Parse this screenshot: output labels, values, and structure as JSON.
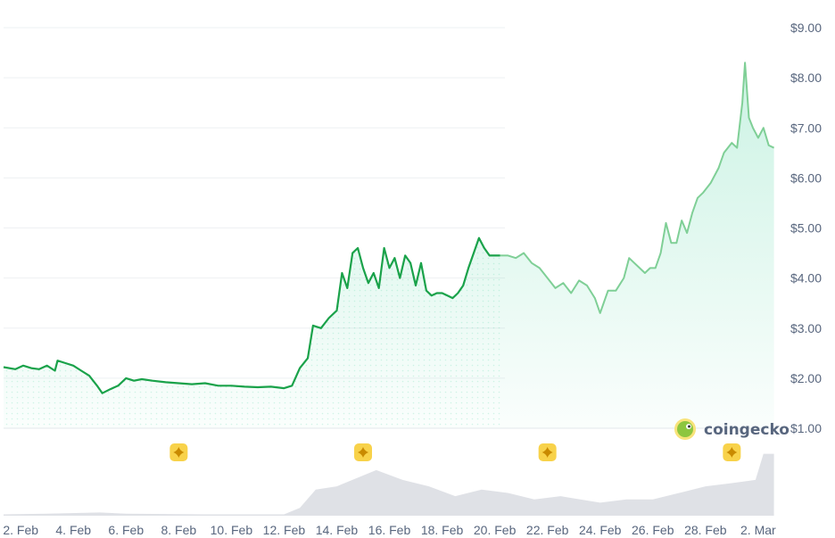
{
  "chart_data": {
    "type": "area",
    "y_ticks": [
      "$9.00",
      "$8.00",
      "$7.00",
      "$6.00",
      "$5.00",
      "$4.00",
      "$3.00",
      "$2.00",
      "$1.00"
    ],
    "y_tick_values": [
      9,
      8,
      7,
      6,
      5,
      4,
      3,
      2,
      1
    ],
    "ylim": [
      1,
      9
    ],
    "x_tick_labels": [
      "2. Feb",
      "4. Feb",
      "6. Feb",
      "8. Feb",
      "10. Feb",
      "12. Feb",
      "14. Feb",
      "16. Feb",
      "18. Feb",
      "20. Feb",
      "22. Feb",
      "24. Feb",
      "26. Feb",
      "28. Feb",
      "2. Mar"
    ],
    "x_tick_days": [
      1,
      3,
      5,
      7,
      9,
      11,
      13,
      15,
      17,
      19,
      21,
      23,
      25,
      27,
      29
    ],
    "xlim_days": [
      0.35,
      29.75
    ],
    "split_day": 19.2,
    "grid": true,
    "series": [
      {
        "values": [
          [
            0.35,
            2.22
          ],
          [
            0.8,
            2.18
          ],
          [
            1.1,
            2.25
          ],
          [
            1.4,
            2.2
          ],
          [
            1.7,
            2.18
          ],
          [
            2.0,
            2.25
          ],
          [
            2.3,
            2.15
          ],
          [
            2.4,
            2.35
          ],
          [
            2.7,
            2.3
          ],
          [
            3.0,
            2.25
          ],
          [
            3.3,
            2.15
          ],
          [
            3.6,
            2.05
          ],
          [
            3.9,
            1.85
          ],
          [
            4.1,
            1.7
          ],
          [
            4.4,
            1.78
          ],
          [
            4.7,
            1.85
          ],
          [
            5.0,
            2.0
          ],
          [
            5.3,
            1.95
          ],
          [
            5.6,
            1.98
          ],
          [
            6.0,
            1.95
          ],
          [
            6.5,
            1.92
          ],
          [
            7.0,
            1.9
          ],
          [
            7.5,
            1.88
          ],
          [
            8.0,
            1.9
          ],
          [
            8.5,
            1.85
          ],
          [
            9.0,
            1.85
          ],
          [
            9.5,
            1.83
          ],
          [
            10.0,
            1.82
          ],
          [
            10.5,
            1.83
          ],
          [
            11.0,
            1.8
          ],
          [
            11.3,
            1.85
          ],
          [
            11.6,
            2.2
          ],
          [
            11.9,
            2.4
          ],
          [
            12.1,
            3.05
          ],
          [
            12.4,
            3.0
          ],
          [
            12.7,
            3.2
          ],
          [
            13.0,
            3.35
          ],
          [
            13.2,
            4.1
          ],
          [
            13.4,
            3.8
          ],
          [
            13.6,
            4.5
          ],
          [
            13.8,
            4.6
          ],
          [
            14.0,
            4.2
          ],
          [
            14.2,
            3.9
          ],
          [
            14.4,
            4.1
          ],
          [
            14.6,
            3.8
          ],
          [
            14.8,
            4.6
          ],
          [
            15.0,
            4.2
          ],
          [
            15.2,
            4.4
          ],
          [
            15.4,
            4.0
          ],
          [
            15.6,
            4.45
          ],
          [
            15.8,
            4.3
          ],
          [
            16.0,
            3.85
          ],
          [
            16.2,
            4.3
          ],
          [
            16.4,
            3.75
          ],
          [
            16.6,
            3.65
          ],
          [
            16.8,
            3.7
          ],
          [
            17.0,
            3.7
          ],
          [
            17.2,
            3.65
          ],
          [
            17.4,
            3.6
          ],
          [
            17.6,
            3.7
          ],
          [
            17.8,
            3.85
          ],
          [
            18.0,
            4.2
          ],
          [
            18.2,
            4.5
          ],
          [
            18.4,
            4.8
          ],
          [
            18.6,
            4.6
          ],
          [
            18.8,
            4.45
          ],
          [
            19.0,
            4.45
          ],
          [
            19.2,
            4.45
          ],
          [
            19.5,
            4.45
          ],
          [
            19.8,
            4.4
          ],
          [
            20.1,
            4.5
          ],
          [
            20.4,
            4.3
          ],
          [
            20.7,
            4.2
          ],
          [
            21.0,
            4.0
          ],
          [
            21.3,
            3.8
          ],
          [
            21.6,
            3.9
          ],
          [
            21.9,
            3.7
          ],
          [
            22.2,
            3.95
          ],
          [
            22.5,
            3.85
          ],
          [
            22.8,
            3.6
          ],
          [
            23.0,
            3.3
          ],
          [
            23.3,
            3.75
          ],
          [
            23.6,
            3.75
          ],
          [
            23.9,
            4.0
          ],
          [
            24.1,
            4.4
          ],
          [
            24.3,
            4.3
          ],
          [
            24.5,
            4.2
          ],
          [
            24.7,
            4.1
          ],
          [
            24.9,
            4.2
          ],
          [
            25.1,
            4.2
          ],
          [
            25.3,
            4.5
          ],
          [
            25.5,
            5.1
          ],
          [
            25.7,
            4.7
          ],
          [
            25.9,
            4.7
          ],
          [
            26.1,
            5.15
          ],
          [
            26.3,
            4.9
          ],
          [
            26.5,
            5.3
          ],
          [
            26.7,
            5.6
          ],
          [
            26.9,
            5.7
          ],
          [
            27.2,
            5.9
          ],
          [
            27.5,
            6.2
          ],
          [
            27.7,
            6.5
          ],
          [
            28.0,
            6.7
          ],
          [
            28.2,
            6.6
          ],
          [
            28.4,
            7.5
          ],
          [
            28.5,
            8.3
          ],
          [
            28.65,
            7.2
          ],
          [
            28.8,
            7.0
          ],
          [
            29.0,
            6.8
          ],
          [
            29.2,
            7.0
          ],
          [
            29.4,
            6.65
          ],
          [
            29.6,
            6.6
          ]
        ]
      }
    ],
    "volume_values": [
      [
        0.35,
        0.02
      ],
      [
        2,
        0.03
      ],
      [
        4,
        0.05
      ],
      [
        5,
        0.03
      ],
      [
        8,
        0.02
      ],
      [
        11,
        0.02
      ],
      [
        11.6,
        0.12
      ],
      [
        12.2,
        0.4
      ],
      [
        13,
        0.45
      ],
      [
        14.5,
        0.7
      ],
      [
        15.5,
        0.55
      ],
      [
        16.5,
        0.45
      ],
      [
        17.5,
        0.3
      ],
      [
        18.5,
        0.4
      ],
      [
        19.5,
        0.35
      ],
      [
        20.5,
        0.25
      ],
      [
        21.5,
        0.3
      ],
      [
        23,
        0.2
      ],
      [
        24,
        0.25
      ],
      [
        25,
        0.25
      ],
      [
        26,
        0.35
      ],
      [
        27,
        0.45
      ],
      [
        28,
        0.5
      ],
      [
        28.9,
        0.55
      ],
      [
        29.2,
        0.95
      ],
      [
        29.6,
        0.95
      ]
    ],
    "volume_max": 1,
    "event_marker_days": [
      7,
      14,
      21,
      28
    ],
    "colors": {
      "line": "#1aa24a",
      "line_future": "#7fcf96",
      "fill": "#16c784",
      "volume": "#dfe1e6",
      "grid": "#eef0f3",
      "axis_text": "#58667e",
      "marker_bg": "#f8d24a",
      "marker_star": "#c98a00"
    }
  },
  "branding": {
    "name": "coingecko",
    "logo_icon": "gecko-logo-icon"
  }
}
